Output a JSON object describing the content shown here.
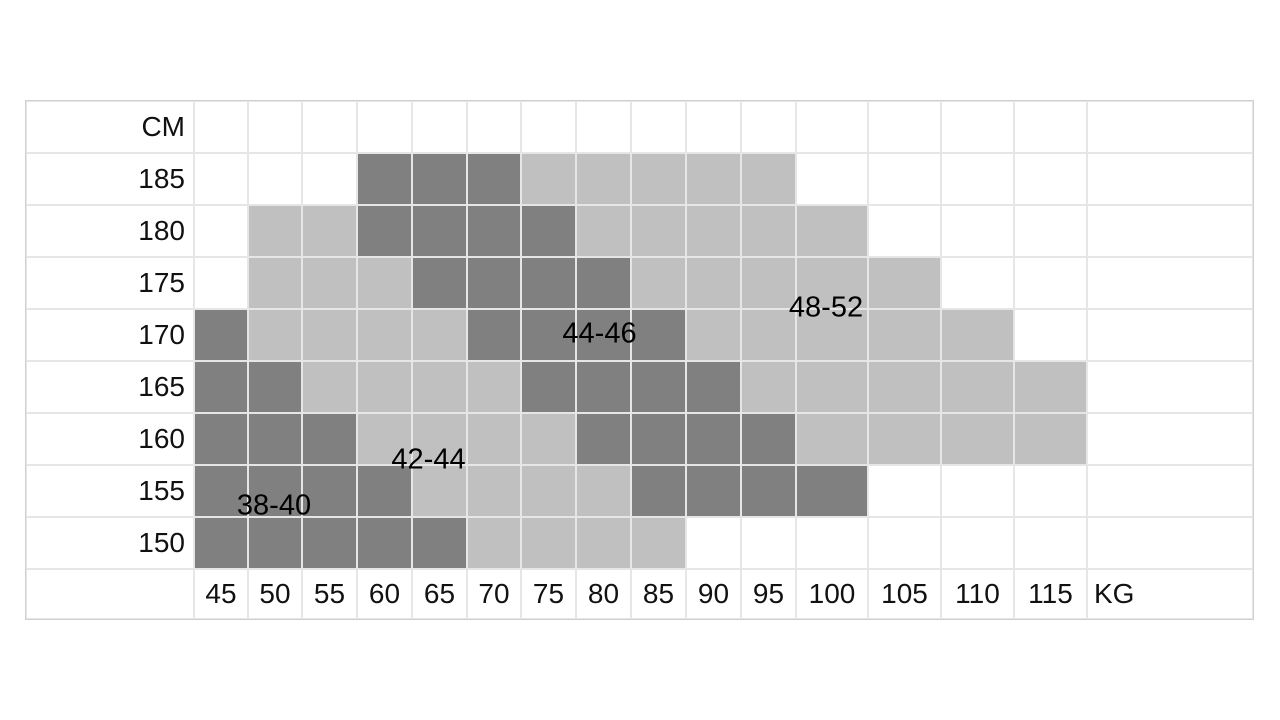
{
  "chart_data": {
    "type": "heatmap",
    "row_header": "CM",
    "column_header": "KG",
    "rows": [
      "185",
      "180",
      "175",
      "170",
      "165",
      "160",
      "155",
      "150"
    ],
    "columns": [
      "45",
      "50",
      "55",
      "60",
      "65",
      "70",
      "75",
      "80",
      "85",
      "90",
      "95",
      "100",
      "105",
      "110",
      "115"
    ],
    "colors": {
      "dark": "#808080",
      "light": "#c0c0c0",
      "white": "#ffffff",
      "grid": "#e6e6e6"
    },
    "cells": [
      "www ddd lllll wwww",
      "wll dddd lllll www",
      "wlll dddd lllll ww",
      "dllll dddd lllll w",
      "ddllll dddd lllll",
      "dddllll dddd llll",
      "dddd llll dddd www",
      "ddddd llll wwwwww"
    ],
    "zones": [
      {
        "label": "38-40",
        "cm": "155",
        "kg": "50"
      },
      {
        "label": "42-44",
        "cm": "160",
        "kg": "65"
      },
      {
        "label": "44-46",
        "cm": "170",
        "kg": "80"
      },
      {
        "label": "48-52",
        "cm": "175",
        "kg": "100"
      }
    ]
  }
}
